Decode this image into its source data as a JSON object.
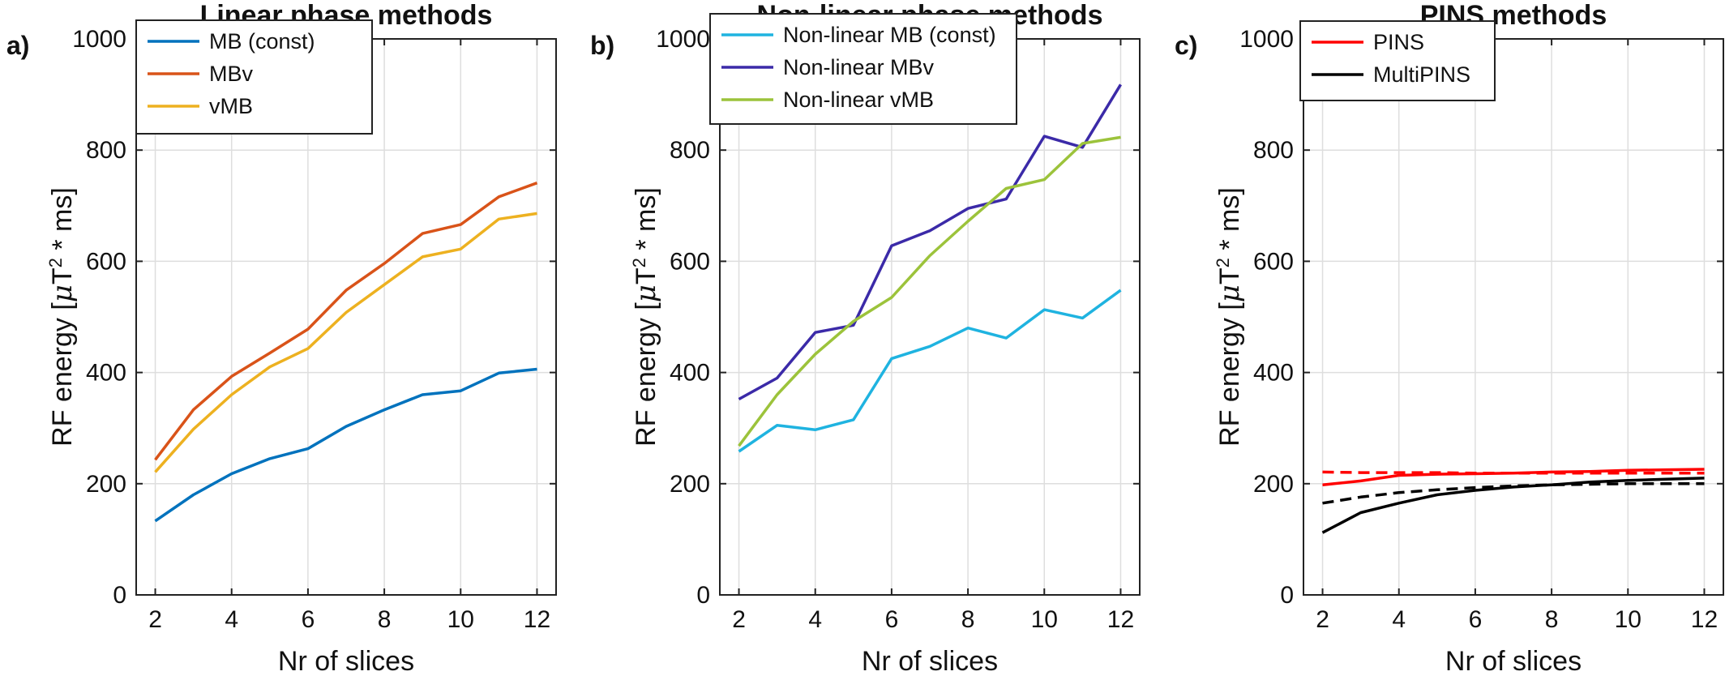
{
  "chart_data": [
    {
      "type": "line",
      "panel_label": "a)",
      "title": "Linear phase methods",
      "xlabel": "Nr of slices",
      "ylabel_main": "RF energy [",
      "ylabel_mu": "μ",
      "ylabel_t": "T",
      "ylabel_sup": "2",
      "ylabel_end": " * ms]",
      "xlim": [
        1.5,
        12.5
      ],
      "ylim": [
        0,
        1000
      ],
      "xticks": [
        "2",
        "4",
        "6",
        "8",
        "10",
        "12"
      ],
      "yticks": [
        "0",
        "200",
        "400",
        "600",
        "800",
        "1000"
      ],
      "grid": true,
      "legend_position": "top-left",
      "x": [
        2,
        3,
        4,
        5,
        6,
        7,
        8,
        9,
        10,
        11,
        12
      ],
      "series": [
        {
          "name": "MB (const)",
          "color": "#0072bd",
          "dashed": false,
          "values": [
            133,
            180,
            218,
            245,
            263,
            303,
            333,
            360,
            367,
            399,
            406
          ]
        },
        {
          "name": "MBv",
          "color": "#d95319",
          "dashed": false,
          "values": [
            243,
            333,
            393,
            435,
            478,
            548,
            596,
            650,
            666,
            716,
            741
          ]
        },
        {
          "name": "vMB",
          "color": "#edb120",
          "dashed": false,
          "values": [
            221,
            298,
            360,
            410,
            443,
            508,
            558,
            608,
            622,
            676,
            686
          ]
        }
      ]
    },
    {
      "type": "line",
      "panel_label": "b)",
      "title": "Non-linear phase methods",
      "xlabel": "Nr of slices",
      "ylabel_main": "RF energy [",
      "ylabel_mu": "μ",
      "ylabel_t": "T",
      "ylabel_sup": "2",
      "ylabel_end": " * ms]",
      "xlim": [
        1.5,
        12.5
      ],
      "ylim": [
        0,
        1000
      ],
      "xticks": [
        "2",
        "4",
        "6",
        "8",
        "10",
        "12"
      ],
      "yticks": [
        "0",
        "200",
        "400",
        "600",
        "800",
        "1000"
      ],
      "grid": true,
      "legend_position": "top-left",
      "x": [
        2,
        3,
        4,
        5,
        6,
        7,
        8,
        9,
        10,
        11,
        12
      ],
      "series": [
        {
          "name": "Non-linear MB (const)",
          "color": "#1fb3e0",
          "dashed": false,
          "values": [
            258,
            305,
            297,
            315,
            425,
            447,
            480,
            462,
            513,
            498,
            548
          ]
        },
        {
          "name": "Non-linear MBv",
          "color": "#3b2aa8",
          "dashed": false,
          "values": [
            352,
            390,
            472,
            485,
            628,
            655,
            695,
            712,
            825,
            805,
            918
          ]
        },
        {
          "name": "Non-linear vMB",
          "color": "#9cc33b",
          "dashed": false,
          "values": [
            268,
            360,
            433,
            492,
            535,
            610,
            672,
            731,
            747,
            812,
            823
          ]
        }
      ]
    },
    {
      "type": "line",
      "panel_label": "c)",
      "title": "PINS methods",
      "xlabel": "Nr of slices",
      "ylabel_main": "RF energy [",
      "ylabel_mu": "μ",
      "ylabel_t": "T",
      "ylabel_sup": "2",
      "ylabel_end": " * ms]",
      "xlim": [
        1.5,
        12.5
      ],
      "ylim": [
        0,
        1000
      ],
      "xticks": [
        "2",
        "4",
        "6",
        "8",
        "10",
        "12"
      ],
      "yticks": [
        "0",
        "200",
        "400",
        "600",
        "800",
        "1000"
      ],
      "grid": true,
      "legend_position": "top-left",
      "x": [
        2,
        3,
        4,
        5,
        6,
        7,
        8,
        9,
        10,
        11,
        12
      ],
      "series": [
        {
          "name": "PINS",
          "color": "#ff0000",
          "dashed": false,
          "values": [
            198,
            205,
            215,
            217,
            218,
            219,
            221,
            222,
            224,
            225,
            226
          ]
        },
        {
          "name": "MultiPINS",
          "color": "#000000",
          "dashed": false,
          "values": [
            112,
            148,
            165,
            180,
            188,
            194,
            198,
            203,
            206,
            208,
            210
          ]
        },
        {
          "name": "",
          "color": "#ff0000",
          "dashed": true,
          "values": [
            221,
            220,
            220,
            220,
            219,
            219,
            219,
            219,
            219,
            219,
            219
          ]
        },
        {
          "name": "",
          "color": "#000000",
          "dashed": true,
          "values": [
            165,
            176,
            184,
            189,
            193,
            196,
            198,
            199,
            200,
            200,
            200
          ]
        }
      ]
    }
  ]
}
